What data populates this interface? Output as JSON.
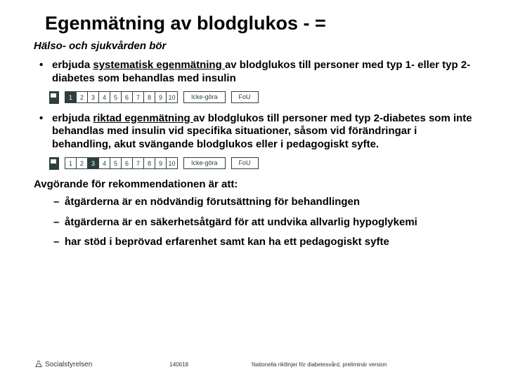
{
  "title": "Egenmätning av blodglukos - =",
  "subtitle": "Hälso- och sjukvården bör",
  "bullet1": {
    "pre": "erbjuda ",
    "u": "systematisk egenmätning ",
    "post": "av blodglukos till personer med typ 1- eller typ 2-diabetes som behandlas med insulin"
  },
  "bullet2": {
    "pre": "erbjuda ",
    "u": "riktad egenmätning ",
    "post": "av blodglukos till personer med typ 2-diabetes som inte behandlas med insulin vid specifika situationer, såsom vid förändringar i behandling, akut svängande blodglukos eller i pedagogiskt syfte."
  },
  "scale": {
    "values": [
      "1",
      "2",
      "3",
      "4",
      "5",
      "6",
      "7",
      "8",
      "9",
      "10"
    ],
    "selected1": 0,
    "selected2": 2,
    "label1": "Icke-göra",
    "label2": "FoU",
    "box_color": "#2d3e3e"
  },
  "sub_head": "Avgörande för rekommendationen är att:",
  "sub1": "åtgärderna är en nödvändig förutsättning för behandlingen",
  "sub2": "åtgärderna är en säkerhetsåtgärd för att undvika allvarlig hypoglykemi",
  "sub3": "har stöd i beprövad erfarenhet samt kan ha ett pedagogiskt syfte",
  "footer": {
    "logo": "Socialstyrelsen",
    "date": "140618",
    "text": "Nationella riktlinjer för diabetesvård, preliminär version"
  },
  "colors": {
    "background": "#ffffff",
    "text": "#000000",
    "scale": "#2d3e3e"
  },
  "typography": {
    "title_pt": 27,
    "body_pt": 15,
    "footer_pt": 8,
    "family": "Arial"
  }
}
